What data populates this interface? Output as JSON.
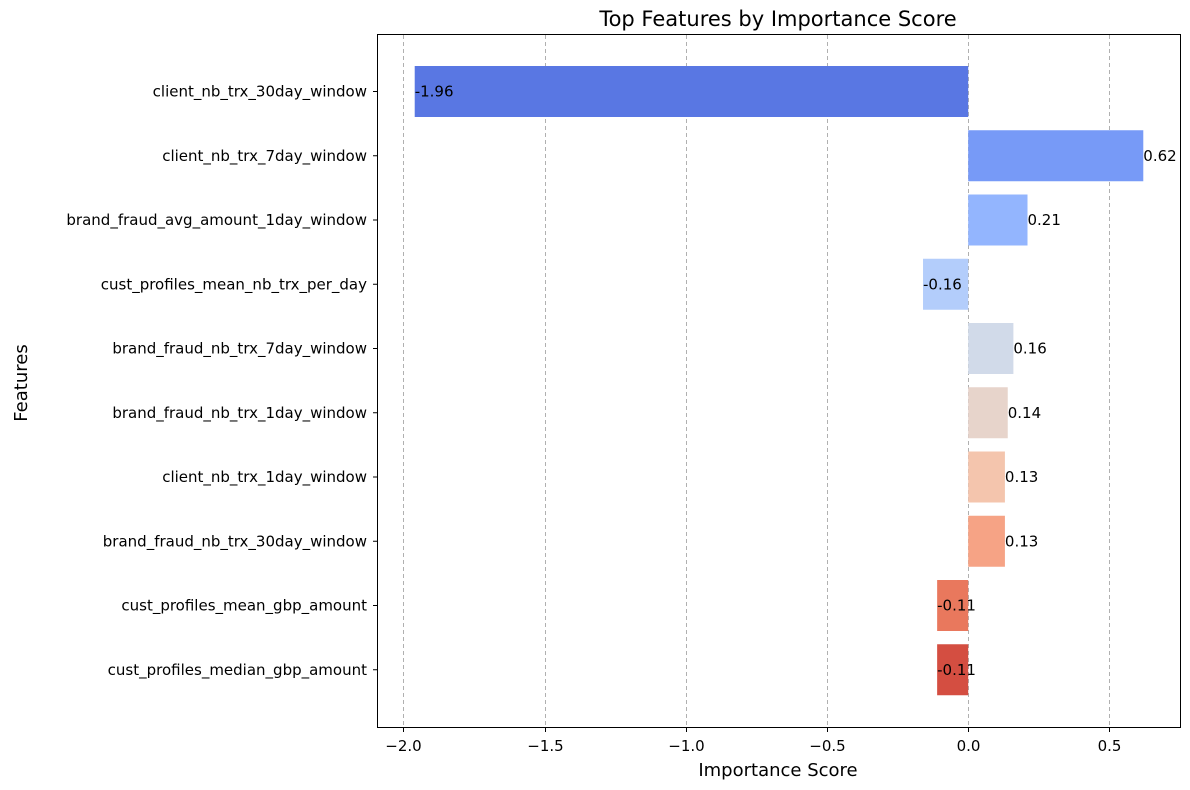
{
  "chart_data": {
    "type": "bar",
    "orientation": "horizontal",
    "title": "Top Features by Importance Score",
    "xlabel": "Importance Score",
    "ylabel": "Features",
    "xlim": [
      -2.09,
      0.75
    ],
    "xticks": [
      -2.0,
      -1.5,
      -1.0,
      -0.5,
      0.0,
      0.5
    ],
    "xtick_labels": [
      "−2.0",
      "−1.5",
      "−1.0",
      "−0.5",
      "0.0",
      "0.5"
    ],
    "grid": "x-dashed",
    "categories": [
      "client_nb_trx_30day_window",
      "client_nb_trx_7day_window",
      "brand_fraud_avg_amount_1day_window",
      "cust_profiles_mean_nb_trx_per_day",
      "brand_fraud_nb_trx_7day_window",
      "brand_fraud_nb_trx_1day_window",
      "client_nb_trx_1day_window",
      "brand_fraud_nb_trx_30day_window",
      "cust_profiles_mean_gbp_amount",
      "cust_profiles_median_gbp_amount"
    ],
    "values": [
      -1.96,
      0.62,
      0.21,
      -0.16,
      0.16,
      0.14,
      0.13,
      0.13,
      -0.11,
      -0.11
    ],
    "value_labels": [
      "-1.96",
      "0.62",
      "0.21",
      "-0.16",
      "0.16",
      "0.14",
      "0.13",
      "0.13",
      "-0.11",
      "-0.11"
    ],
    "colors": [
      "#5977e3",
      "#779af7",
      "#93b5fe",
      "#b3cdfb",
      "#d1dae9",
      "#e7d4cb",
      "#f4c5ad",
      "#f6a385",
      "#e9785d",
      "#d44e41"
    ]
  }
}
